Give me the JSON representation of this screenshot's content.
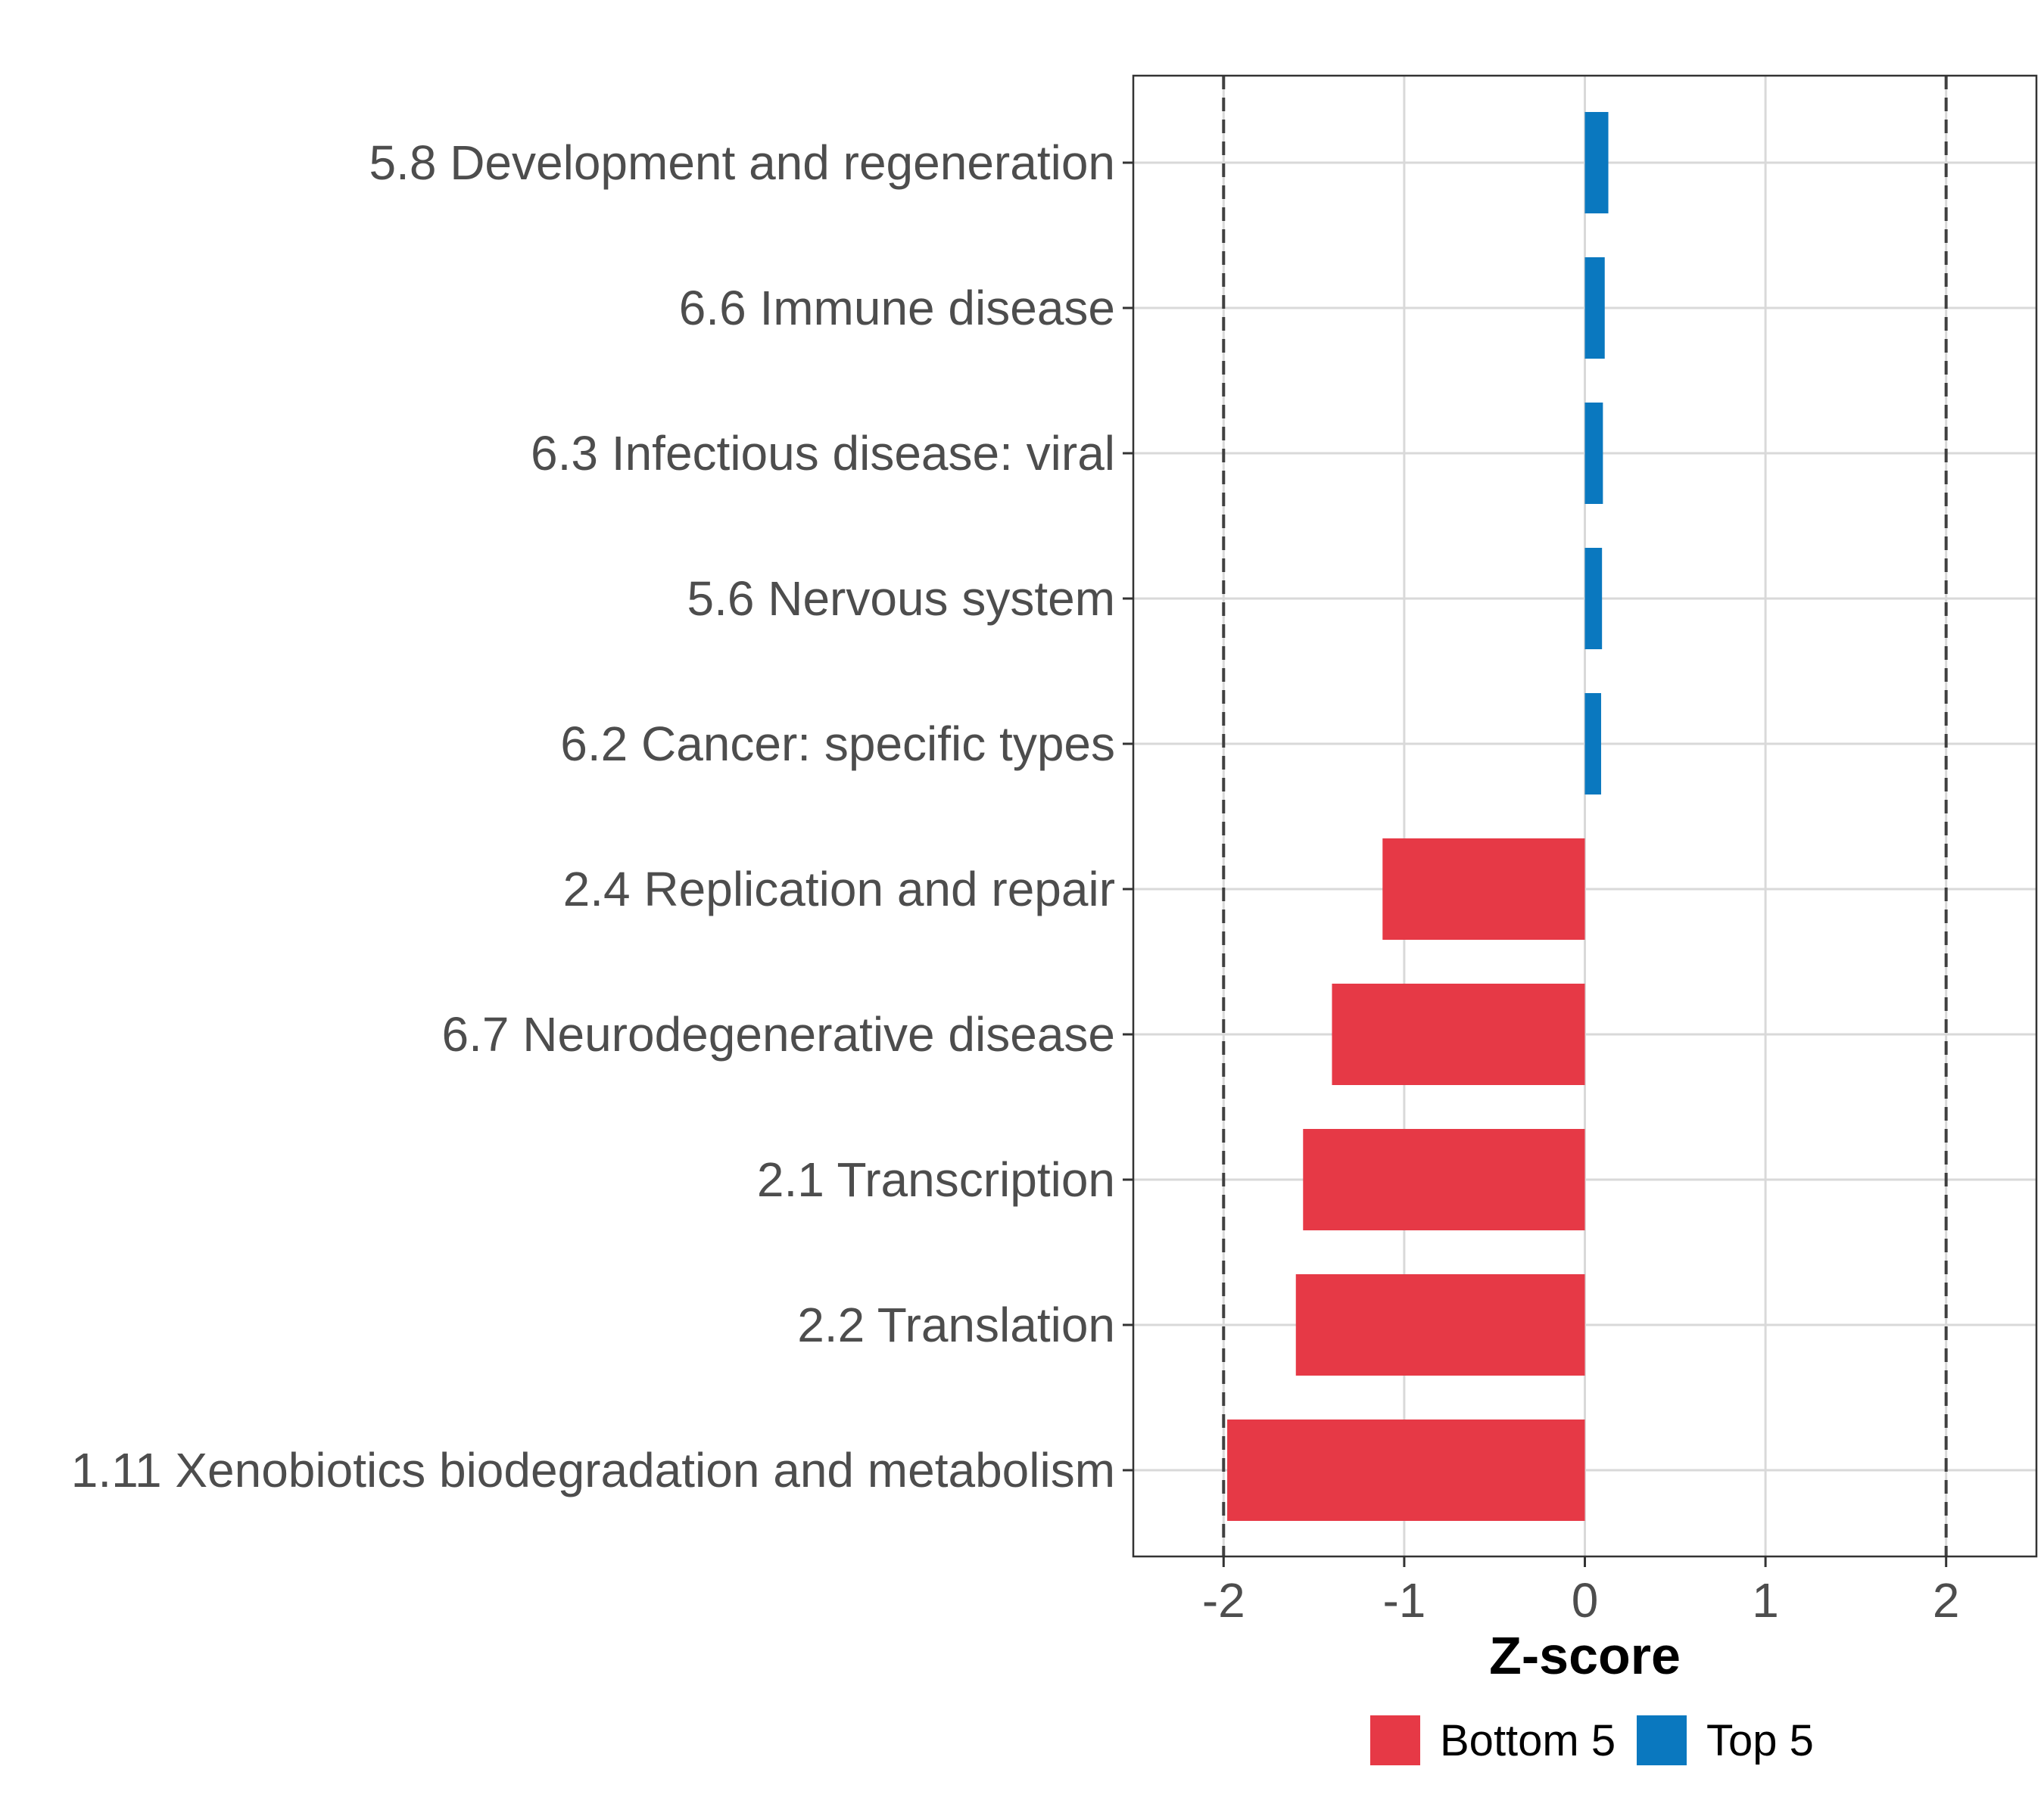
{
  "chart_data": {
    "type": "bar",
    "orientation": "horizontal",
    "title": "",
    "xlabel": "Z-score",
    "ylabel": "",
    "xlim": [
      -2.5,
      2.5
    ],
    "xticks": [
      -2,
      -1,
      0,
      1,
      2
    ],
    "xtick_labels": [
      "-2",
      "-1",
      "0",
      "1",
      "2"
    ],
    "reference_lines": [
      -2,
      2
    ],
    "grid": true,
    "legend_position": "bottom",
    "categories": [
      "5.8 Development and regeneration",
      "6.6 Immune disease",
      "6.3 Infectious disease: viral",
      "5.6 Nervous system",
      "6.2 Cancer: specific types",
      "2.4 Replication and repair",
      "6.7 Neurodegenerative disease",
      "2.1 Transcription",
      "2.2 Translation",
      "1.11 Xenobiotics biodegradation and metabolism"
    ],
    "values": [
      0.13,
      0.11,
      0.1,
      0.095,
      0.09,
      -1.12,
      -1.4,
      -1.56,
      -1.6,
      -1.98
    ],
    "groups": [
      "Top 5",
      "Top 5",
      "Top 5",
      "Top 5",
      "Top 5",
      "Bottom 5",
      "Bottom 5",
      "Bottom 5",
      "Bottom 5",
      "Bottom 5"
    ],
    "series": [
      {
        "name": "Bottom 5",
        "color": "#e63946"
      },
      {
        "name": "Top 5",
        "color": "#0a78bf"
      }
    ]
  }
}
